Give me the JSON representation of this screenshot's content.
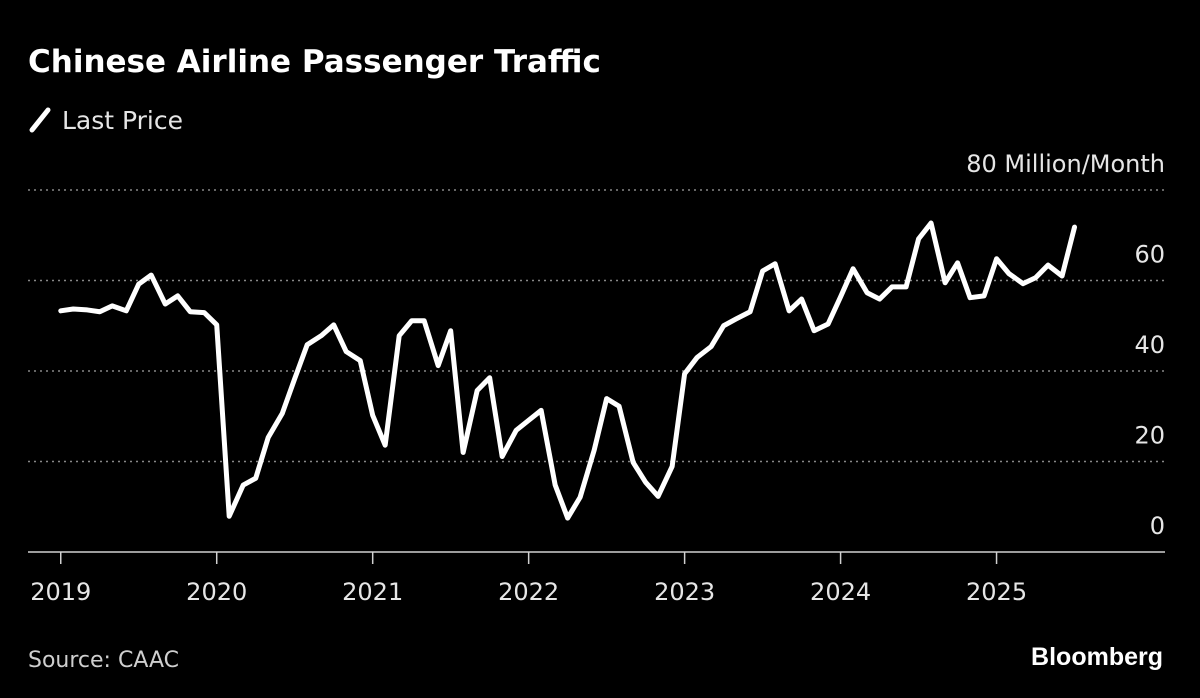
{
  "chart_data": {
    "type": "line",
    "title": "Chinese Airline Passenger Traffic",
    "source": "Source: CAAC",
    "branding": "Bloomberg",
    "x": [
      2019.0,
      2019.08,
      2019.17,
      2019.25,
      2019.33,
      2019.42,
      2019.5,
      2019.58,
      2019.67,
      2019.75,
      2019.83,
      2019.92,
      2020.0,
      2020.08,
      2020.17,
      2020.25,
      2020.33,
      2020.42,
      2020.5,
      2020.58,
      2020.67,
      2020.75,
      2020.83,
      2020.92,
      2021.0,
      2021.08,
      2021.17,
      2021.25,
      2021.33,
      2021.42,
      2021.5,
      2021.58,
      2021.67,
      2021.75,
      2021.83,
      2021.92,
      2022.0,
      2022.08,
      2022.17,
      2022.25,
      2022.33,
      2022.42,
      2022.5,
      2022.58,
      2022.67,
      2022.75,
      2022.83,
      2022.92,
      2023.0,
      2023.08,
      2023.17,
      2023.25,
      2023.33,
      2023.42,
      2023.5,
      2023.58,
      2023.67,
      2023.75,
      2023.83,
      2023.92,
      2024.0,
      2024.08,
      2024.17,
      2024.25,
      2024.33,
      2024.42,
      2024.5,
      2024.58,
      2024.67,
      2024.75,
      2024.83,
      2024.92,
      2025.0,
      2025.08,
      2025.17,
      2025.25,
      2025.33,
      2025.42,
      2025.5
    ],
    "series": [
      {
        "name": "Last Price",
        "color": "#ffffff",
        "values": [
          53.3,
          53.7,
          53.5,
          53.1,
          54.4,
          53.3,
          59.2,
          61.2,
          54.8,
          56.6,
          53.1,
          52.9,
          50.2,
          7.9,
          14.8,
          16.3,
          25.3,
          30.6,
          38.3,
          45.8,
          47.8,
          50.2,
          44.3,
          42.3,
          30.2,
          23.6,
          47.8,
          51.1,
          51.1,
          41.2,
          48.9,
          22.0,
          35.7,
          38.5,
          21.1,
          26.9,
          29.1,
          31.3,
          14.8,
          7.5,
          12.1,
          22.5,
          33.9,
          32.2,
          19.8,
          15.4,
          12.3,
          18.9,
          39.4,
          43.0,
          45.4,
          50.0,
          51.5,
          53.1,
          62.1,
          63.7,
          53.3,
          55.9,
          48.9,
          50.4,
          56.4,
          62.6,
          57.3,
          55.9,
          58.6,
          58.6,
          69.2,
          72.7,
          59.5,
          63.9,
          56.2,
          56.6,
          64.8,
          61.5,
          59.3,
          60.6,
          63.4,
          61.0,
          71.8
        ]
      }
    ],
    "xlim": [
      2018.79,
      2026.08
    ],
    "xticks": [
      2019,
      2020,
      2021,
      2022,
      2023,
      2024,
      2025
    ],
    "ylim": [
      0,
      80
    ],
    "yticks": [
      0,
      20,
      40,
      60,
      {
        "value": 80,
        "label": "80 Million/Month"
      }
    ],
    "grid": true
  }
}
